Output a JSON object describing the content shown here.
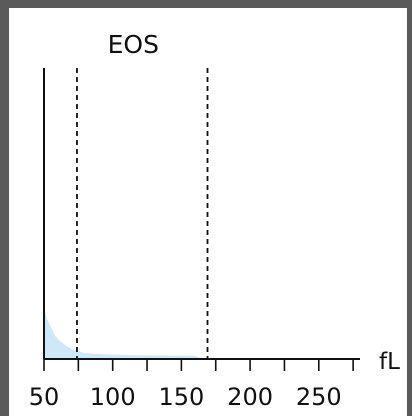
{
  "window": {
    "chrome_color": "#5a5a5a"
  },
  "chart_data": {
    "type": "area",
    "title": "EOS",
    "xlabel": "fL",
    "ylabel": "",
    "xlim": [
      50,
      280
    ],
    "ylim": [
      0,
      100
    ],
    "x_ticks": [
      50,
      100,
      150,
      200,
      250
    ],
    "x_minor_ticks": [
      75,
      125,
      175,
      225,
      275
    ],
    "grid": false,
    "thresholds": [
      74,
      169
    ],
    "series": [
      {
        "x": [
          50,
          52,
          55,
          58,
          62,
          66,
          70,
          75,
          80,
          90,
          100,
          110,
          120,
          140,
          160,
          165
        ],
        "values": [
          17,
          14,
          11,
          8,
          6,
          4.5,
          3.5,
          2.6,
          2,
          1.7,
          1.5,
          1.4,
          1.3,
          1.2,
          1.1,
          0
        ],
        "color": "#cfe8f8"
      }
    ],
    "colors": {
      "fill": "#cfe8f8",
      "axis": "#111111",
      "threshold": "#111111"
    }
  }
}
